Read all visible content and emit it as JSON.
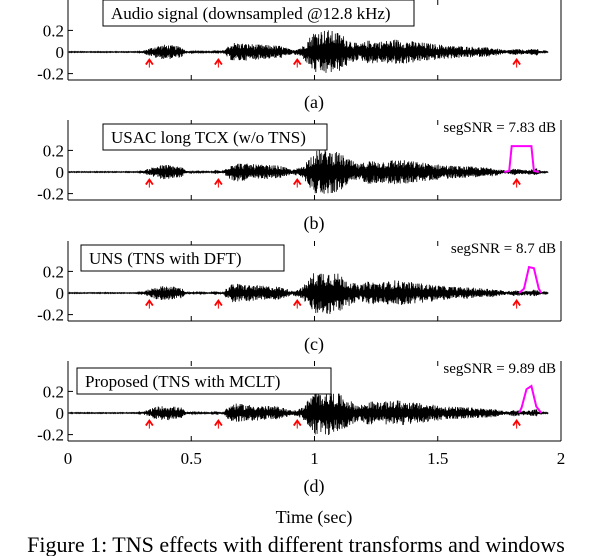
{
  "chart_data": [
    {
      "type": "line",
      "legend": "Audio signal (downsampled @12.8 kHz)",
      "annotation": "",
      "panel_label": "(a)",
      "ylim": [
        -0.25,
        0.33
      ],
      "yticks": [
        "0.2",
        "0",
        "-0.2"
      ],
      "ytick_values": [
        0.2,
        0,
        -0.2
      ],
      "xlim": [
        0,
        2
      ],
      "markers_x": [
        0.33,
        0.61,
        0.93,
        1.82
      ],
      "overlay": null
    },
    {
      "type": "line",
      "legend": "USAC long TCX (w/o TNS)",
      "annotation": "segSNR = 7.83 dB",
      "panel_label": "(b)",
      "ylim": [
        -0.25,
        0.33
      ],
      "yticks": [
        "0.2",
        "0",
        "-0.2"
      ],
      "ytick_values": [
        0.2,
        0,
        -0.2
      ],
      "xlim": [
        0,
        2
      ],
      "markers_x": [
        0.33,
        0.61,
        0.93,
        1.82
      ],
      "overlay": {
        "color": "#ff00ff",
        "x": [
          1.77,
          1.79,
          1.8,
          1.88,
          1.89,
          1.91
        ],
        "y": [
          0,
          0.01,
          0.24,
          0.24,
          0.01,
          0
        ]
      }
    },
    {
      "type": "line",
      "legend": "UNS (TNS with DFT)",
      "annotation": "segSNR = 8.7 dB",
      "panel_label": "(c)",
      "ylim": [
        -0.25,
        0.33
      ],
      "yticks": [
        "0.2",
        "0",
        "-0.2"
      ],
      "ytick_values": [
        0.2,
        0,
        -0.2
      ],
      "xlim": [
        0,
        2
      ],
      "markers_x": [
        0.33,
        0.61,
        0.93,
        1.82
      ],
      "overlay": {
        "color": "#ff00ff",
        "x": [
          1.83,
          1.85,
          1.87,
          1.89,
          1.91,
          1.92
        ],
        "y": [
          0,
          0.04,
          0.24,
          0.23,
          0.04,
          0
        ]
      }
    },
    {
      "type": "line",
      "legend": "Proposed (TNS with MCLT)",
      "annotation": "segSNR = 9.89 dB",
      "panel_label": "(d)",
      "ylim": [
        -0.25,
        0.33
      ],
      "yticks": [
        "0.2",
        "0",
        "-0.2"
      ],
      "ytick_values": [
        0.2,
        0,
        -0.2
      ],
      "xlim": [
        0,
        2
      ],
      "markers_x": [
        0.33,
        0.61,
        0.93,
        1.82
      ],
      "overlay": {
        "color": "#ff00ff",
        "x": [
          1.83,
          1.84,
          1.86,
          1.88,
          1.9,
          1.92
        ],
        "y": [
          0,
          0.05,
          0.22,
          0.25,
          0.06,
          0
        ]
      }
    }
  ],
  "xaxis": {
    "ticks": [
      "0",
      "0.5",
      "1",
      "1.5",
      "2"
    ],
    "tick_values": [
      0,
      0.5,
      1,
      1.5,
      2
    ],
    "xlabel": "Time (sec)"
  },
  "caption": "Figure 1: TNS effects with different transforms and windows",
  "colors": {
    "signal": "#000000",
    "marker": "#ff0000",
    "overlay": "#ff00ff"
  }
}
